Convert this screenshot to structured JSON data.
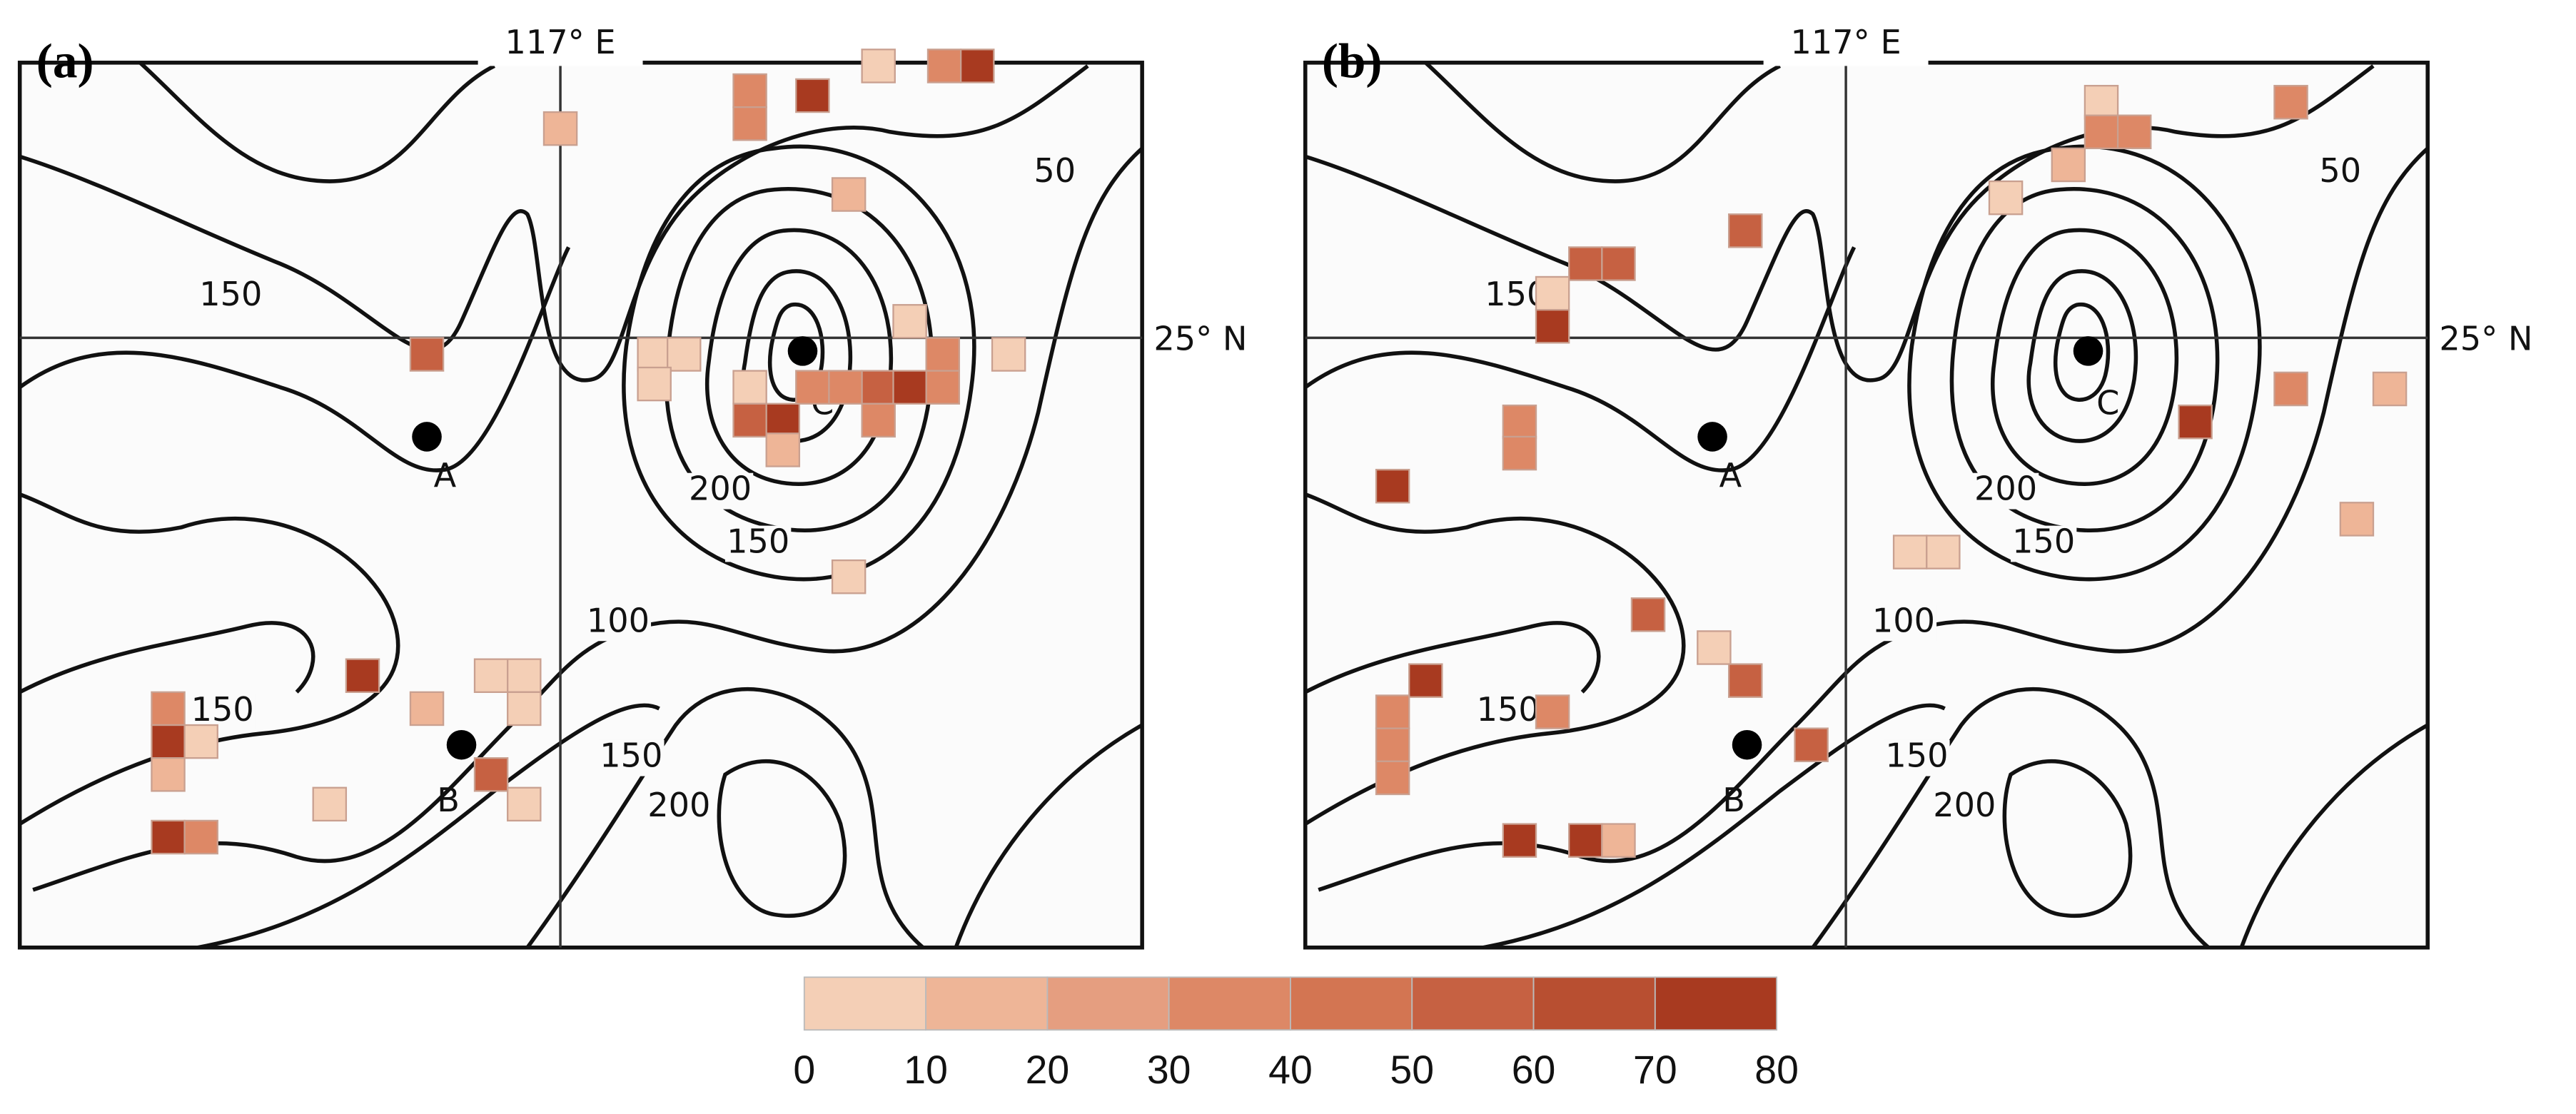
{
  "panels": [
    {
      "label": "(a)",
      "lon_label": "117° E",
      "lat_label": "25° N",
      "contour_labels": [
        "150",
        "50",
        "200",
        "150",
        "100",
        "150",
        "150",
        "200"
      ],
      "site_labels": [
        "A",
        "B",
        "C"
      ],
      "cells": [
        15,
        35,
        35,
        75,
        5,
        35,
        75,
        15,
        55,
        5,
        5,
        5,
        5,
        5,
        5,
        55,
        75,
        15,
        35,
        35,
        55,
        75,
        35,
        35,
        35,
        5,
        75,
        5,
        5,
        5,
        15,
        35,
        75,
        5,
        15,
        55,
        5,
        5,
        75,
        35
      ]
    },
    {
      "label": "(b)",
      "lon_label": "117° E",
      "lat_label": "25° N",
      "contour_labels": [
        "150",
        "50",
        "200",
        "150",
        "100",
        "150",
        "150",
        "200"
      ],
      "site_labels": [
        "A",
        "B",
        "C"
      ],
      "cells": [
        35,
        5,
        35,
        35,
        15,
        5,
        55,
        55,
        55,
        5,
        75,
        35,
        15,
        75,
        35,
        35,
        75,
        15,
        5,
        5,
        55,
        5,
        55,
        75,
        35,
        35,
        35,
        35,
        55,
        75,
        75,
        15
      ]
    }
  ],
  "colorbar": {
    "ticks": [
      0,
      10,
      20,
      30,
      40,
      50,
      60,
      70,
      80
    ],
    "colors": [
      "#f4cfb6",
      "#eeb597",
      "#e59e80",
      "#dd8866",
      "#d37552",
      "#c66142",
      "#b84f31",
      "#a83a20"
    ]
  }
}
